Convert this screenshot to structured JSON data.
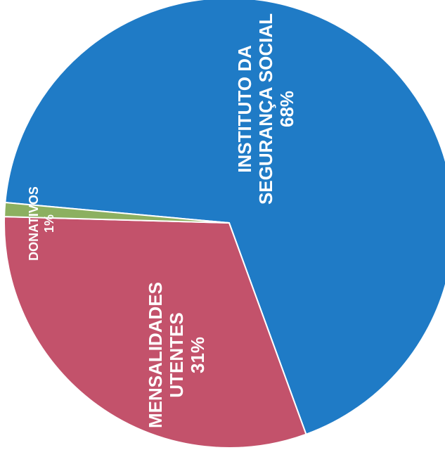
{
  "chart_data": {
    "type": "pie",
    "slices": [
      {
        "label_lines": [
          "INSTITUTO DA",
          "SEGURANÇA SOCIAL"
        ],
        "percent_label": "68%",
        "value": 68,
        "color": "#1f7bc6"
      },
      {
        "label_lines": [
          "MENSALIDADES",
          "UTENTES"
        ],
        "percent_label": "31%",
        "value": 31,
        "color": "#c3526b"
      },
      {
        "label_lines": [
          "DONATIVOS"
        ],
        "percent_label": "1%",
        "value": 1,
        "color": "#8cb060"
      }
    ]
  }
}
